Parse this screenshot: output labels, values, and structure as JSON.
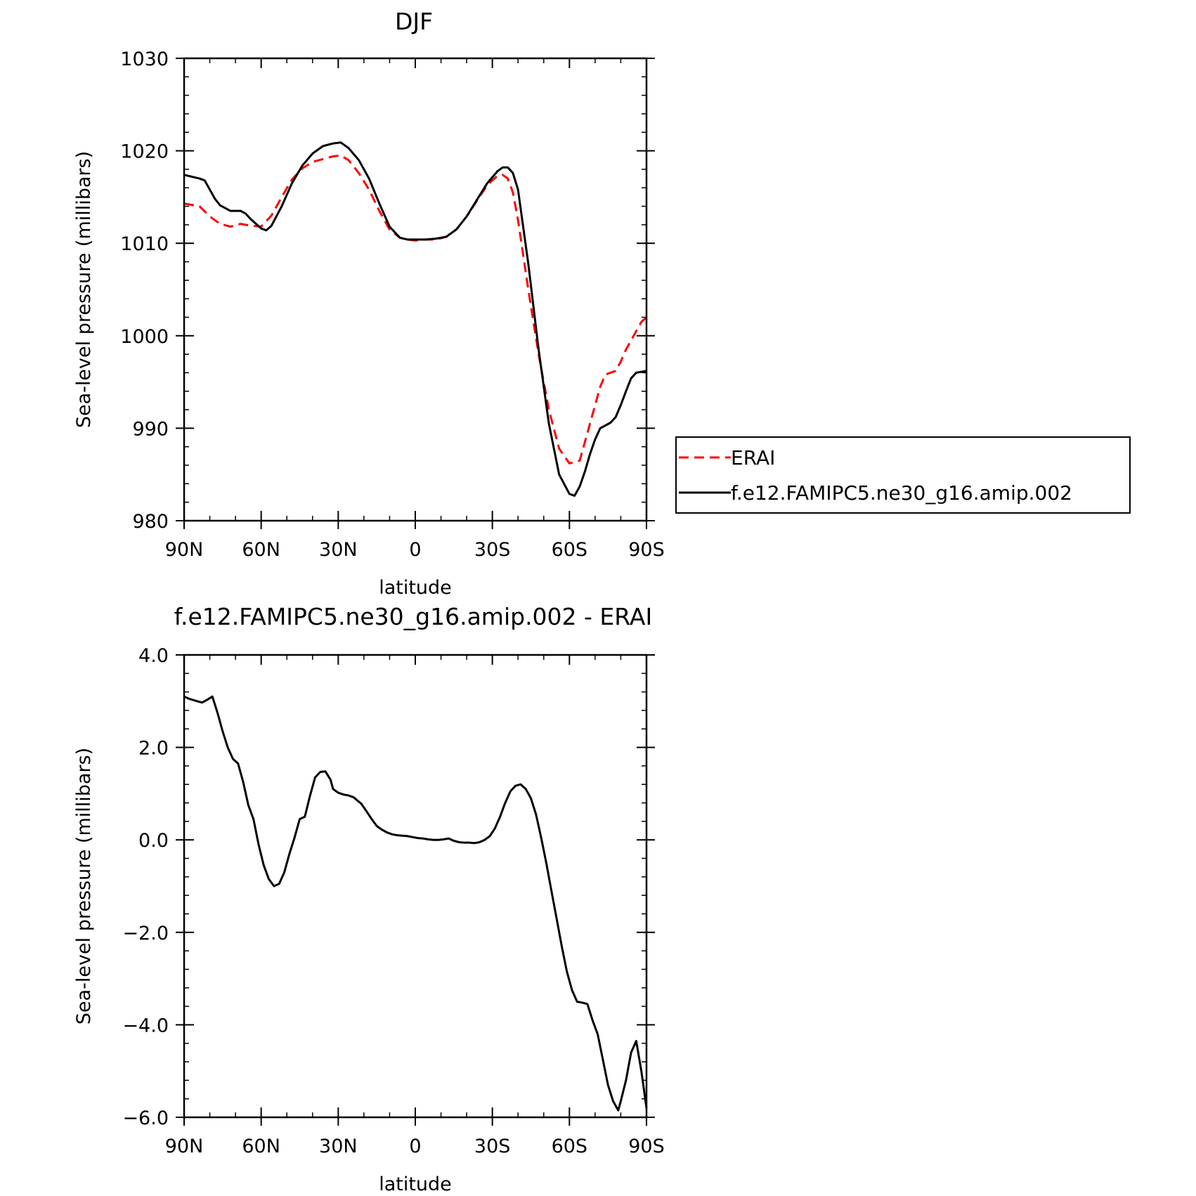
{
  "chart_data": [
    {
      "type": "line",
      "title": "DJF",
      "xlabel": "latitude",
      "ylabel": "Sea-level pressure (millibars)",
      "xlim": [
        90,
        -90
      ],
      "ylim": [
        980,
        1030
      ],
      "x_ticks": [
        90,
        60,
        30,
        0,
        -30,
        -60,
        -90
      ],
      "x_tick_labels": [
        "90N",
        "60N",
        "30N",
        "0",
        "30S",
        "60S",
        "90S"
      ],
      "y_ticks": [
        980,
        990,
        1000,
        1010,
        1020,
        1030
      ],
      "y_tick_labels": [
        "980",
        "990",
        "1000",
        "1010",
        "1020",
        "1030"
      ],
      "legend_position": "right",
      "series": [
        {
          "name": "ERAI",
          "color": "#ff0000",
          "dash": true,
          "x": [
            90,
            84,
            80,
            76,
            72,
            68,
            64,
            60,
            56,
            52,
            48,
            44,
            40,
            36,
            32,
            29,
            26,
            22,
            18,
            14,
            10,
            6,
            3,
            0,
            -4,
            -8,
            -12,
            -16,
            -20,
            -24,
            -28,
            -32,
            -34,
            -36,
            -38,
            -40,
            -44,
            -48,
            -52,
            -56,
            -60,
            -64,
            -66,
            -68,
            -70,
            -72,
            -74,
            -76,
            -78,
            -80,
            -82,
            -84,
            -86,
            -88,
            -90
          ],
          "y": [
            1014.3,
            1014.0,
            1012.9,
            1012.1,
            1011.8,
            1012.1,
            1011.9,
            1011.8,
            1013.0,
            1015.0,
            1016.9,
            1018.1,
            1018.8,
            1019.1,
            1019.4,
            1019.5,
            1019.0,
            1017.6,
            1015.8,
            1013.5,
            1011.5,
            1010.6,
            1010.4,
            1010.3,
            1010.4,
            1010.4,
            1010.7,
            1011.5,
            1012.9,
            1014.6,
            1016.3,
            1017.3,
            1017.4,
            1017.0,
            1015.5,
            1012.5,
            1005.0,
            998.0,
            992.0,
            987.8,
            986.2,
            986.5,
            988.5,
            990.5,
            992.5,
            994.5,
            995.8,
            996.0,
            996.2,
            997.2,
            998.5,
            999.5,
            1000.5,
            1001.5,
            1002.0
          ]
        },
        {
          "name": "f.e12.FAMIPC5.ne30_g16.amip.002",
          "color": "#000000",
          "dash": false,
          "x": [
            90,
            84,
            82,
            80,
            78,
            76,
            72,
            68,
            66,
            64,
            60,
            58,
            56,
            52,
            48,
            44,
            40,
            36,
            32,
            29,
            26,
            22,
            18,
            14,
            10,
            6,
            3,
            0,
            -4,
            -8,
            -12,
            -16,
            -20,
            -24,
            -28,
            -32,
            -34,
            -36,
            -38,
            -40,
            -44,
            -48,
            -52,
            -56,
            -60,
            -62,
            -64,
            -66,
            -68,
            -70,
            -72,
            -74,
            -76,
            -78,
            -80,
            -82,
            -84,
            -86,
            -88,
            -90
          ],
          "y": [
            1017.4,
            1017.0,
            1016.8,
            1015.8,
            1014.8,
            1014.1,
            1013.5,
            1013.5,
            1013.2,
            1012.6,
            1011.6,
            1011.4,
            1011.9,
            1014.0,
            1016.5,
            1018.4,
            1019.7,
            1020.5,
            1020.8,
            1020.9,
            1020.3,
            1019.0,
            1017.0,
            1014.3,
            1011.8,
            1010.6,
            1010.4,
            1010.4,
            1010.4,
            1010.5,
            1010.7,
            1011.5,
            1012.9,
            1014.7,
            1016.5,
            1017.8,
            1018.2,
            1018.2,
            1017.6,
            1015.8,
            1007.8,
            998.5,
            990.5,
            985.0,
            982.9,
            982.7,
            983.7,
            985.3,
            987.2,
            988.8,
            990.0,
            990.3,
            990.6,
            991.2,
            992.5,
            994.0,
            995.4,
            996.0,
            996.1,
            996.2
          ]
        }
      ]
    },
    {
      "type": "line",
      "title": "f.e12.FAMIPC5.ne30_g16.amip.002 - ERAI",
      "xlabel": "latitude",
      "ylabel": "Sea-level pressure (millibars)",
      "xlim": [
        90,
        -90
      ],
      "ylim": [
        -6,
        4
      ],
      "x_ticks": [
        90,
        60,
        30,
        0,
        -30,
        -60,
        -90
      ],
      "x_tick_labels": [
        "90N",
        "60N",
        "30N",
        "0",
        "30S",
        "60S",
        "90S"
      ],
      "y_ticks": [
        4,
        2,
        0,
        -2,
        -4,
        -6
      ],
      "y_tick_labels": [
        "4.0",
        "2.0",
        "0.0",
        "-2.0",
        "-4.0",
        "-6.0"
      ],
      "series": [
        {
          "color": "#000000",
          "dash": false,
          "x": [
            90,
            88,
            85,
            83,
            81,
            79,
            77,
            75,
            73,
            71,
            69,
            67,
            65,
            63,
            61,
            59,
            57,
            55,
            53,
            51,
            49,
            47,
            45,
            43,
            41,
            39,
            37,
            35,
            33,
            32,
            30,
            28,
            26,
            24,
            21,
            19,
            17,
            15,
            13,
            11,
            9,
            7,
            5,
            3,
            1,
            -1,
            -3,
            -5,
            -7,
            -9,
            -11,
            -13,
            -15,
            -17,
            -19,
            -21,
            -23,
            -25,
            -27,
            -29,
            -31,
            -33,
            -35,
            -37,
            -39,
            -41,
            -43,
            -45,
            -47,
            -49,
            -51,
            -53,
            -55,
            -57,
            -59,
            -61,
            -63,
            -65,
            -67,
            -69,
            -71,
            -73,
            -75,
            -77,
            -79,
            -80,
            -82,
            -84,
            -86,
            -88,
            -90
          ],
          "y": [
            3.1,
            3.05,
            3.0,
            2.97,
            3.03,
            3.1,
            2.75,
            2.35,
            2.0,
            1.75,
            1.65,
            1.25,
            0.75,
            0.45,
            -0.1,
            -0.55,
            -0.85,
            -1.0,
            -0.95,
            -0.7,
            -0.3,
            0.05,
            0.45,
            0.5,
            0.95,
            1.35,
            1.47,
            1.48,
            1.3,
            1.1,
            1.02,
            0.98,
            0.96,
            0.92,
            0.78,
            0.62,
            0.45,
            0.3,
            0.22,
            0.16,
            0.12,
            0.1,
            0.09,
            0.08,
            0.06,
            0.04,
            0.03,
            0.01,
            0.0,
            0.0,
            0.01,
            0.03,
            -0.02,
            -0.05,
            -0.06,
            -0.06,
            -0.07,
            -0.05,
            0.0,
            0.08,
            0.25,
            0.5,
            0.8,
            1.05,
            1.17,
            1.2,
            1.1,
            0.9,
            0.55,
            0.05,
            -0.5,
            -1.1,
            -1.7,
            -2.3,
            -2.85,
            -3.25,
            -3.5,
            -3.52,
            -3.55,
            -3.9,
            -4.2,
            -4.75,
            -5.3,
            -5.65,
            -5.85,
            -5.65,
            -5.2,
            -4.6,
            -4.35,
            -5.0,
            -5.8
          ]
        }
      ]
    }
  ]
}
